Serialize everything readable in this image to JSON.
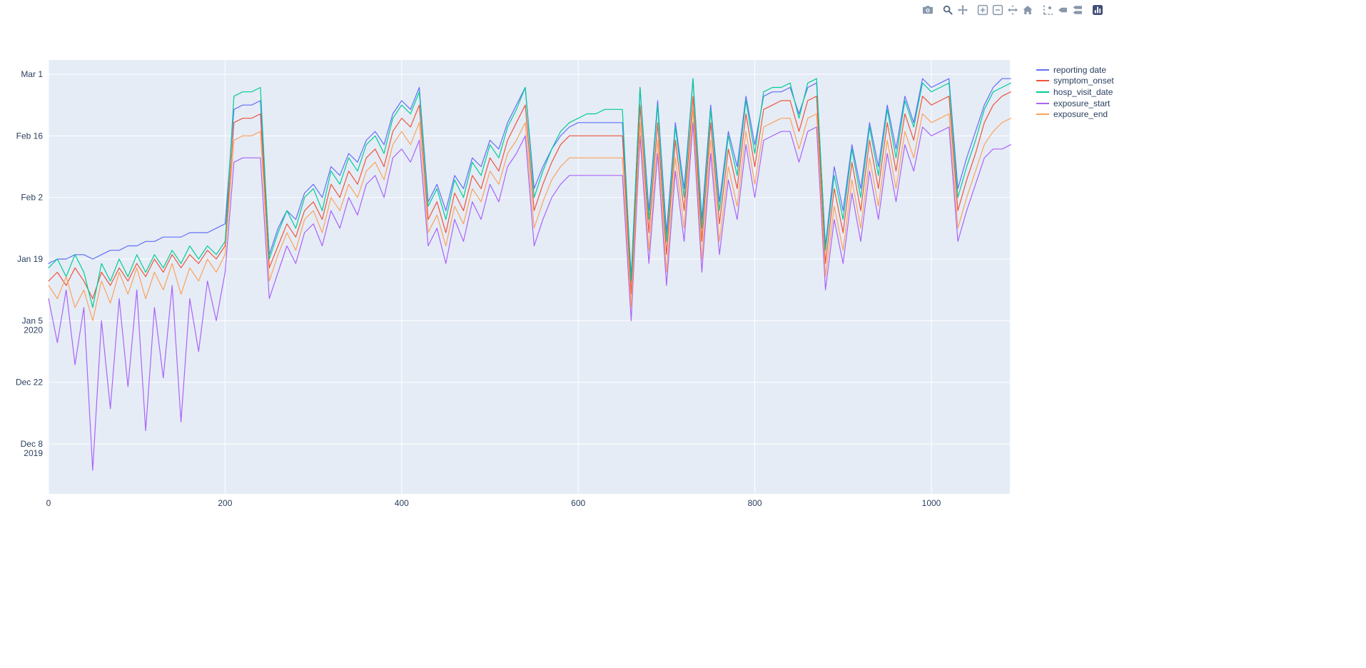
{
  "page": {
    "background": "#ffffff"
  },
  "modebar": {
    "icon_color": "#8898ab",
    "active_icon_color": "#54657e",
    "logo_color": "#3f4f75",
    "buttons": [
      {
        "name": "download-plot-as-png",
        "icon": "camera-icon"
      },
      {
        "name": "zoom",
        "icon": "magnifier-icon",
        "active": true
      },
      {
        "name": "pan",
        "icon": "pan-arrows-icon"
      },
      {
        "name": "zoom-in",
        "icon": "zoom-in-icon"
      },
      {
        "name": "zoom-out",
        "icon": "zoom-out-icon"
      },
      {
        "name": "autoscale",
        "icon": "autoscale-icon"
      },
      {
        "name": "reset-axes",
        "icon": "home-icon"
      },
      {
        "name": "toggle-spike-lines",
        "icon": "spikelines-icon"
      },
      {
        "name": "show-closest-data-on-hover",
        "icon": "hover-closest-icon"
      },
      {
        "name": "compare-data-on-hover",
        "icon": "hover-compare-icon"
      },
      {
        "name": "plotly-logo",
        "icon": "plotly-logo-icon"
      }
    ]
  },
  "legend": {
    "entries": [
      {
        "label": "reporting date",
        "color": "#636EFA"
      },
      {
        "label": "symptom_onset",
        "color": "#EF553B"
      },
      {
        "label": "hosp_visit_date",
        "color": "#00CC96"
      },
      {
        "label": "exposure_start",
        "color": "#AB63FA"
      },
      {
        "label": "exposure_end",
        "color": "#FFA15A"
      }
    ]
  },
  "chart_data": {
    "type": "line",
    "title": "",
    "xlabel": "",
    "ylabel": "",
    "plot_bg": "#E5ECF6",
    "grid_color": "#FFFFFF",
    "grid": true,
    "legend_position": "right",
    "xlim": [
      0,
      1096
    ],
    "x_ticks": [
      0,
      200,
      400,
      600,
      800,
      1000
    ],
    "y_unit": "date (values stored as days since 2019-12-01)",
    "y_ticks": [
      {
        "label": "Mar 1",
        "day": 91
      },
      {
        "label": "Feb 16",
        "day": 77
      },
      {
        "label": "Feb 2",
        "day": 63
      },
      {
        "label": "Jan 19",
        "day": 49
      },
      {
        "label": "Jan 5",
        "sublabel": "2020",
        "day": 35
      },
      {
        "label": "Dec 22",
        "day": 21
      },
      {
        "label": "Dec 8",
        "sublabel": "2019",
        "day": 7
      }
    ],
    "x": [
      0,
      10,
      20,
      30,
      40,
      50,
      60,
      70,
      80,
      90,
      100,
      110,
      120,
      130,
      140,
      150,
      160,
      170,
      180,
      190,
      200,
      210,
      220,
      230,
      240,
      250,
      260,
      270,
      280,
      290,
      300,
      310,
      320,
      330,
      340,
      350,
      360,
      370,
      380,
      390,
      400,
      410,
      420,
      430,
      440,
      450,
      460,
      470,
      480,
      490,
      500,
      510,
      520,
      530,
      540,
      550,
      560,
      570,
      580,
      590,
      600,
      610,
      620,
      630,
      640,
      650,
      660,
      670,
      680,
      690,
      700,
      710,
      720,
      730,
      740,
      750,
      760,
      770,
      780,
      790,
      800,
      810,
      820,
      830,
      840,
      850,
      860,
      870,
      880,
      890,
      900,
      910,
      920,
      930,
      940,
      950,
      960,
      970,
      980,
      990,
      1000,
      1010,
      1020,
      1030,
      1040,
      1050,
      1060,
      1070,
      1080,
      1090
    ],
    "series": [
      {
        "name": "reporting date",
        "color": "#636EFA",
        "values": [
          48,
          49,
          49,
          50,
          50,
          49,
          50,
          51,
          51,
          52,
          52,
          53,
          53,
          54,
          54,
          54,
          55,
          55,
          55,
          56,
          57,
          83,
          84,
          84,
          85,
          50,
          56,
          60,
          58,
          64,
          66,
          63,
          70,
          68,
          73,
          71,
          76,
          78,
          75,
          82,
          85,
          83,
          88,
          62,
          66,
          60,
          68,
          65,
          72,
          70,
          76,
          74,
          80,
          84,
          88,
          65,
          70,
          74,
          77,
          79,
          80,
          80,
          80,
          80,
          80,
          80,
          45,
          88,
          60,
          85,
          55,
          80,
          65,
          90,
          58,
          84,
          62,
          78,
          70,
          86,
          75,
          86,
          87,
          87,
          88,
          82,
          88,
          89,
          52,
          70,
          60,
          75,
          65,
          80,
          70,
          84,
          74,
          86,
          80,
          90,
          88,
          89,
          90,
          65,
          72,
          78,
          84,
          88,
          90,
          90
        ]
      },
      {
        "name": "symptom_onset",
        "color": "#EF553B",
        "values": [
          44,
          46,
          43,
          47,
          44,
          40,
          46,
          43,
          47,
          44,
          48,
          45,
          49,
          46,
          50,
          47,
          50,
          48,
          51,
          49,
          52,
          80,
          81,
          81,
          82,
          47,
          52,
          57,
          54,
          60,
          62,
          58,
          66,
          63,
          69,
          66,
          72,
          74,
          70,
          78,
          81,
          79,
          84,
          58,
          62,
          55,
          64,
          60,
          68,
          65,
          72,
          69,
          76,
          80,
          84,
          60,
          66,
          71,
          75,
          77,
          77,
          77,
          77,
          77,
          77,
          77,
          41,
          84,
          55,
          80,
          50,
          76,
          60,
          86,
          53,
          80,
          57,
          74,
          65,
          82,
          70,
          83,
          84,
          85,
          85,
          78,
          85,
          86,
          48,
          65,
          55,
          71,
          60,
          76,
          65,
          80,
          69,
          82,
          76,
          86,
          84,
          85,
          86,
          60,
          67,
          73,
          80,
          84,
          86,
          87
        ]
      },
      {
        "name": "hosp_visit_date",
        "color": "#00CC96",
        "values": [
          47,
          49,
          45,
          50,
          46,
          38,
          48,
          44,
          49,
          45,
          50,
          46,
          50,
          47,
          51,
          48,
          52,
          49,
          52,
          50,
          53,
          86,
          87,
          87,
          88,
          49,
          55,
          60,
          56,
          63,
          65,
          60,
          69,
          66,
          72,
          69,
          75,
          77,
          73,
          81,
          84,
          82,
          87,
          61,
          65,
          58,
          67,
          63,
          71,
          68,
          75,
          72,
          79,
          83,
          88,
          63,
          69,
          74,
          78,
          80,
          81,
          82,
          82,
          83,
          83,
          83,
          44,
          88,
          58,
          84,
          53,
          79,
          63,
          90,
          56,
          83,
          60,
          77,
          68,
          85,
          73,
          87,
          88,
          88,
          89,
          81,
          89,
          90,
          51,
          68,
          58,
          74,
          63,
          79,
          68,
          83,
          72,
          85,
          79,
          89,
          87,
          88,
          89,
          63,
          70,
          76,
          83,
          87,
          88,
          89
        ]
      },
      {
        "name": "exposure_start",
        "color": "#AB63FA",
        "values": [
          40,
          30,
          42,
          25,
          38,
          1,
          35,
          15,
          40,
          20,
          42,
          10,
          38,
          22,
          43,
          12,
          40,
          28,
          44,
          35,
          46,
          71,
          72,
          72,
          72,
          40,
          46,
          52,
          48,
          55,
          57,
          52,
          60,
          56,
          63,
          59,
          66,
          68,
          63,
          72,
          74,
          71,
          76,
          52,
          56,
          48,
          58,
          53,
          62,
          58,
          66,
          62,
          70,
          73,
          77,
          52,
          58,
          63,
          66,
          68,
          68,
          68,
          68,
          68,
          68,
          68,
          35,
          77,
          48,
          73,
          43,
          69,
          53,
          80,
          46,
          73,
          50,
          67,
          58,
          75,
          63,
          76,
          77,
          78,
          78,
          71,
          78,
          79,
          42,
          58,
          48,
          64,
          53,
          69,
          58,
          73,
          62,
          75,
          69,
          79,
          77,
          78,
          79,
          53,
          60,
          66,
          72,
          74,
          74,
          75
        ]
      },
      {
        "name": "exposure_end",
        "color": "#FFA15A",
        "values": [
          43,
          40,
          45,
          38,
          42,
          35,
          44,
          39,
          46,
          41,
          47,
          40,
          46,
          42,
          48,
          41,
          47,
          44,
          49,
          46,
          50,
          76,
          77,
          77,
          78,
          44,
          50,
          55,
          51,
          58,
          60,
          55,
          63,
          60,
          66,
          63,
          69,
          71,
          67,
          75,
          78,
          75,
          80,
          55,
          59,
          52,
          61,
          57,
          65,
          62,
          69,
          66,
          73,
          76,
          80,
          56,
          62,
          67,
          70,
          72,
          72,
          72,
          72,
          72,
          72,
          72,
          38,
          80,
          51,
          76,
          46,
          72,
          56,
          83,
          49,
          76,
          53,
          70,
          61,
          78,
          66,
          79,
          80,
          81,
          81,
          74,
          81,
          82,
          45,
          61,
          51,
          67,
          56,
          72,
          61,
          76,
          65,
          78,
          72,
          82,
          80,
          81,
          82,
          56,
          63,
          69,
          75,
          78,
          80,
          81
        ]
      }
    ]
  }
}
